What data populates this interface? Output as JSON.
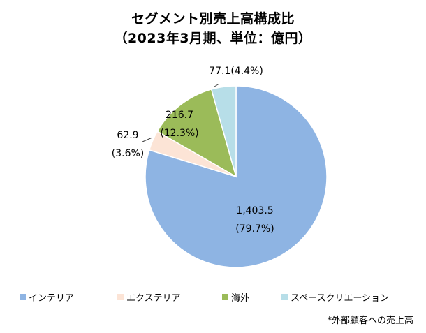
{
  "chart_data": {
    "type": "pie",
    "title": "セグメント別売上高構成比",
    "subtitle": "（2023年3月期、単位：億円）",
    "categories": [
      "インテリア",
      "エクステリア",
      "海外",
      "スペースクリエーション"
    ],
    "values": [
      1403.5,
      62.9,
      216.7,
      77.1
    ],
    "value_labels": [
      "1,403.5",
      "62.9",
      "216.7",
      "77.1"
    ],
    "percent_labels": [
      "(79.7%)",
      "(3.6%)",
      "(12.3%)",
      "(4.4%)"
    ],
    "colors": [
      "#8EB4E3",
      "#FCE4D6",
      "#9BBB59",
      "#B7DEE8"
    ],
    "legend_position": "bottom",
    "start": "12 o'clock",
    "direction": "clockwise",
    "footnote": "*外部顧客への売上高"
  }
}
